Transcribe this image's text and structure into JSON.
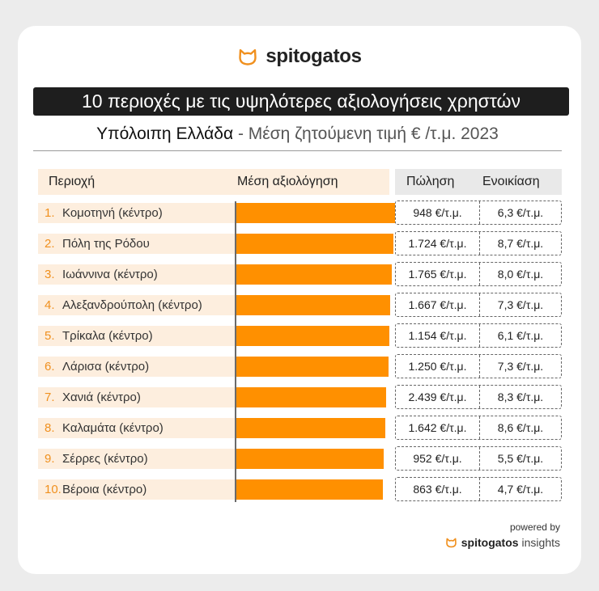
{
  "brand": {
    "name": "spitogatos",
    "logo_icon": "cat-head-icon",
    "accent_color": "#f0901e"
  },
  "title": "10 περιοχές με τις υψηλότερες αξιολογήσεις χρηστών",
  "subtitle": {
    "region": "Υπόλοιπη Ελλάδα",
    "separator": " - ",
    "description": "Μέση ζητούμενη τιμή € /τ.μ. 2023"
  },
  "headers": {
    "area": "Περιοχή",
    "rating": "Μέση αξιολόγηση",
    "sale": "Πώληση",
    "rent": "Ενοικίαση"
  },
  "chart_data": {
    "type": "bar",
    "orientation": "horizontal",
    "title": "10 περιοχές με τις υψηλότερες αξιολογήσεις χρηστών",
    "xlabel": "Μέση αξιολόγηση",
    "ylabel": "Περιοχή",
    "xlim": [
      0,
      100
    ],
    "bar_color": "#ff9000",
    "categories": [
      "Κομοτηνή (κέντρο)",
      "Πόλη της Ρόδου",
      "Ιωάννινα (κέντρο)",
      "Αλεξανδρούπολη (κέντρο)",
      "Τρίκαλα (κέντρο)",
      "Λάρισα (κέντρο)",
      "Χανιά (κέντρο)",
      "Καλαμάτα (κέντρο)",
      "Σέρρες (κέντρο)",
      "Βέροια (κέντρο)"
    ],
    "values": [
      98,
      97,
      96,
      95,
      94.5,
      94,
      92.5,
      92,
      91,
      90.5
    ]
  },
  "rows": [
    {
      "rank": "1.",
      "area": "Κομοτηνή (κέντρο)",
      "sale": "948 €/τ.μ.",
      "rent": "6,3 €/τ.μ."
    },
    {
      "rank": "2.",
      "area": "Πόλη της Ρόδου",
      "sale": "1.724 €/τ.μ.",
      "rent": "8,7 €/τ.μ."
    },
    {
      "rank": "3.",
      "area": "Ιωάννινα (κέντρο)",
      "sale": "1.765 €/τ.μ.",
      "rent": "8,0 €/τ.μ."
    },
    {
      "rank": "4.",
      "area": "Αλεξανδρούπολη (κέντρο)",
      "sale": "1.667 €/τ.μ.",
      "rent": "7,3 €/τ.μ."
    },
    {
      "rank": "5.",
      "area": "Τρίκαλα (κέντρο)",
      "sale": "1.154 €/τ.μ.",
      "rent": "6,1 €/τ.μ."
    },
    {
      "rank": "6.",
      "area": "Λάρισα (κέντρο)",
      "sale": "1.250 €/τ.μ.",
      "rent": "7,3 €/τ.μ."
    },
    {
      "rank": "7.",
      "area": "Χανιά (κέντρο)",
      "sale": "2.439 €/τ.μ.",
      "rent": "8,3 €/τ.μ."
    },
    {
      "rank": "8.",
      "area": "Καλαμάτα (κέντρο)",
      "sale": "1.642 €/τ.μ.",
      "rent": "8,6 €/τ.μ."
    },
    {
      "rank": "9.",
      "area": "Σέρρες (κέντρο)",
      "sale": "952 €/τ.μ.",
      "rent": "5,5 €/τ.μ."
    },
    {
      "rank": "10.",
      "area": "Βέροια (κέντρο)",
      "sale": "863 €/τ.μ.",
      "rent": "4,7 €/τ.μ."
    }
  ],
  "footer": {
    "powered_by": "powered by",
    "brand": "spitogatos",
    "suffix": "insights",
    "logo_icon": "cat-head-icon"
  }
}
